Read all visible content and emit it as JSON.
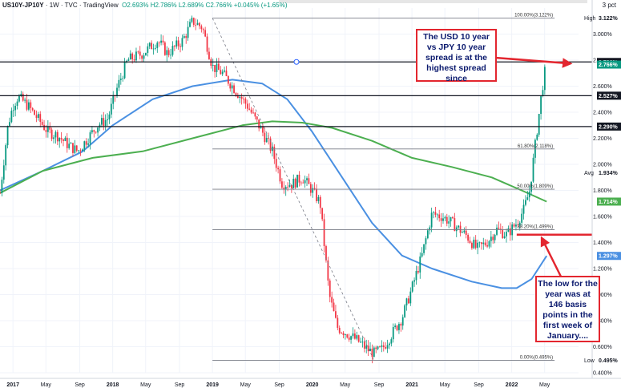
{
  "header": {
    "symbol": "US10Y-JP10Y",
    "interval": "1W",
    "source": "TVC",
    "brand": "TradingView",
    "ohlc": "O2.693% H2.786% L2.689% C2.766% +0.045% (+1.65%)"
  },
  "currency_label": "3 pct",
  "annotations": {
    "top_note": "The USD 10 year vs JPY 10 year spread is at the highest spread since",
    "bottom_note": "The low for the year was at 146 basis points in the first week of January...."
  },
  "colors": {
    "up": "#089981",
    "down": "#f23645",
    "ma_fast": "#4a90e2",
    "ma_slow": "#4caf50",
    "arrow": "#e3262f",
    "text_box": "#0b1a6e"
  },
  "chart_data": {
    "type": "candlestick",
    "ylim": [
      0.4,
      3.2
    ],
    "y_ticks": [
      "3.000%",
      "2.800%",
      "2.600%",
      "2.400%",
      "2.200%",
      "2.000%",
      "1.800%",
      "1.600%",
      "1.400%",
      "1.200%",
      "1.000%",
      "0.800%",
      "0.600%",
      "0.400%"
    ],
    "x_ticks": [
      {
        "label": "2017",
        "x": 2017.0,
        "major": true
      },
      {
        "label": "May",
        "x": 2017.33
      },
      {
        "label": "Sep",
        "x": 2017.67
      },
      {
        "label": "2018",
        "x": 2018.0,
        "major": true
      },
      {
        "label": "May",
        "x": 2018.33
      },
      {
        "label": "Sep",
        "x": 2018.67
      },
      {
        "label": "2019",
        "x": 2019.0,
        "major": true
      },
      {
        "label": "May",
        "x": 2019.33
      },
      {
        "label": "Sep",
        "x": 2019.67
      },
      {
        "label": "2020",
        "x": 2020.0,
        "major": true
      },
      {
        "label": "May",
        "x": 2020.33
      },
      {
        "label": "Sep",
        "x": 2020.67
      },
      {
        "label": "2021",
        "x": 2021.0,
        "major": true
      },
      {
        "label": "May",
        "x": 2021.33
      },
      {
        "label": "Sep",
        "x": 2021.67
      },
      {
        "label": "2022",
        "x": 2022.0,
        "major": true
      },
      {
        "label": "May",
        "x": 2022.33
      }
    ],
    "price_path": [
      [
        2016.87,
        1.78
      ],
      [
        2016.95,
        2.3
      ],
      [
        2017.0,
        2.45
      ],
      [
        2017.05,
        2.52
      ],
      [
        2017.15,
        2.45
      ],
      [
        2017.25,
        2.35
      ],
      [
        2017.35,
        2.25
      ],
      [
        2017.45,
        2.22
      ],
      [
        2017.55,
        2.15
      ],
      [
        2017.65,
        2.1
      ],
      [
        2017.75,
        2.2
      ],
      [
        2017.85,
        2.3
      ],
      [
        2017.95,
        2.35
      ],
      [
        2018.05,
        2.6
      ],
      [
        2018.15,
        2.8
      ],
      [
        2018.3,
        2.85
      ],
      [
        2018.45,
        2.95
      ],
      [
        2018.55,
        2.85
      ],
      [
        2018.7,
        2.95
      ],
      [
        2018.8,
        3.1
      ],
      [
        2018.9,
        3.05
      ],
      [
        2019.0,
        2.75
      ],
      [
        2019.1,
        2.7
      ],
      [
        2019.25,
        2.55
      ],
      [
        2019.35,
        2.45
      ],
      [
        2019.5,
        2.25
      ],
      [
        2019.6,
        2.1
      ],
      [
        2019.7,
        1.85
      ],
      [
        2019.8,
        1.85
      ],
      [
        2019.9,
        1.9
      ],
      [
        2020.0,
        1.8
      ],
      [
        2020.08,
        1.7
      ],
      [
        2020.17,
        1.0
      ],
      [
        2020.25,
        0.75
      ],
      [
        2020.35,
        0.7
      ],
      [
        2020.45,
        0.65
      ],
      [
        2020.55,
        0.58
      ],
      [
        2020.62,
        0.55
      ],
      [
        2020.7,
        0.58
      ],
      [
        2020.8,
        0.7
      ],
      [
        2020.9,
        0.82
      ],
      [
        2021.0,
        1.05
      ],
      [
        2021.1,
        1.3
      ],
      [
        2021.2,
        1.62
      ],
      [
        2021.3,
        1.6
      ],
      [
        2021.4,
        1.55
      ],
      [
        2021.55,
        1.45
      ],
      [
        2021.65,
        1.35
      ],
      [
        2021.75,
        1.4
      ],
      [
        2021.85,
        1.5
      ],
      [
        2021.95,
        1.46
      ],
      [
        2022.05,
        1.55
      ],
      [
        2022.12,
        1.65
      ],
      [
        2022.18,
        1.8
      ],
      [
        2022.22,
        2.05
      ],
      [
        2022.26,
        2.3
      ],
      [
        2022.3,
        2.55
      ],
      [
        2022.33,
        2.7
      ],
      [
        2022.35,
        2.766
      ]
    ],
    "moving_averages": [
      {
        "name": "MA fast",
        "color": "#4a90e2",
        "last": "1.297%",
        "points": [
          [
            2016.87,
            1.8
          ],
          [
            2017.3,
            1.95
          ],
          [
            2017.7,
            2.1
          ],
          [
            2018.0,
            2.3
          ],
          [
            2018.4,
            2.5
          ],
          [
            2018.8,
            2.6
          ],
          [
            2019.2,
            2.65
          ],
          [
            2019.5,
            2.62
          ],
          [
            2019.75,
            2.5
          ],
          [
            2020.0,
            2.25
          ],
          [
            2020.3,
            1.9
          ],
          [
            2020.6,
            1.55
          ],
          [
            2020.9,
            1.3
          ],
          [
            2021.2,
            1.2
          ],
          [
            2021.6,
            1.1
          ],
          [
            2021.9,
            1.05
          ],
          [
            2022.05,
            1.05
          ],
          [
            2022.2,
            1.12
          ],
          [
            2022.35,
            1.297
          ]
        ]
      },
      {
        "name": "MA slow",
        "color": "#4caf50",
        "last": "1.714%",
        "points": [
          [
            2016.87,
            1.78
          ],
          [
            2017.3,
            1.95
          ],
          [
            2017.8,
            2.05
          ],
          [
            2018.3,
            2.1
          ],
          [
            2018.8,
            2.2
          ],
          [
            2019.3,
            2.3
          ],
          [
            2019.6,
            2.33
          ],
          [
            2019.9,
            2.32
          ],
          [
            2020.2,
            2.28
          ],
          [
            2020.6,
            2.18
          ],
          [
            2021.0,
            2.05
          ],
          [
            2021.4,
            1.98
          ],
          [
            2021.8,
            1.9
          ],
          [
            2022.1,
            1.8
          ],
          [
            2022.35,
            1.714
          ]
        ]
      }
    ],
    "levels": [
      {
        "value": 3.122,
        "label": "3.122%",
        "kind": "high",
        "color": "#131722"
      },
      {
        "value": 2.786,
        "label": "2.786%",
        "kind": "line",
        "color": "#131722"
      },
      {
        "value": 2.766,
        "label": "2.766%",
        "kind": "last",
        "color": "#089981"
      },
      {
        "value": 2.527,
        "label": "2.527%",
        "kind": "line",
        "color": "#131722"
      },
      {
        "value": 2.29,
        "label": "2.290%",
        "kind": "line",
        "color": "#131722"
      },
      {
        "value": 1.934,
        "label": "1.934%",
        "kind": "avg",
        "color": "#131722"
      },
      {
        "value": 1.714,
        "label": "1.714%",
        "kind": "ma",
        "color": "#4caf50"
      },
      {
        "value": 1.297,
        "label": "1.297%",
        "kind": "ma",
        "color": "#4a90e2"
      },
      {
        "value": 0.495,
        "label": "0.495%",
        "kind": "low",
        "color": "#131722"
      }
    ],
    "level_side_labels": {
      "high": "High",
      "avg": "Avg",
      "low": "Low"
    },
    "fib_levels": [
      {
        "value": 3.122,
        "label": "100.00%(3.122%)"
      },
      {
        "value": 2.118,
        "label": "61.80%(2.118%)"
      },
      {
        "value": 1.809,
        "label": "50.00%(1.809%)"
      },
      {
        "value": 1.499,
        "label": "38.20%(1.499%)"
      },
      {
        "value": 0.495,
        "label": "0.00%(0.495%)"
      }
    ],
    "support_line": 1.46
  }
}
